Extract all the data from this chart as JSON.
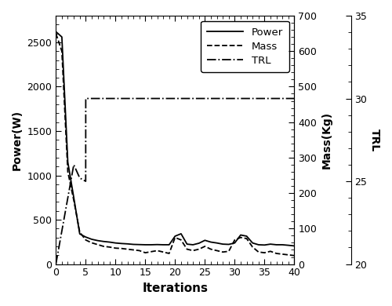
{
  "xlabel": "Iterations",
  "ylabel_left": "Power(W)",
  "ylabel_middle": "Mass(Kg)",
  "ylabel_right": "TRL",
  "xlim": [
    0,
    40
  ],
  "ylim_left": [
    0,
    2800
  ],
  "ylim_middle": [
    0,
    700
  ],
  "ylim_right": [
    20,
    35
  ],
  "xticks": [
    0,
    5,
    10,
    15,
    20,
    25,
    30,
    35,
    40
  ],
  "yticks_left": [
    0,
    500,
    1000,
    1500,
    2000,
    2500
  ],
  "yticks_middle": [
    0,
    100,
    200,
    300,
    400,
    500,
    600,
    700
  ],
  "yticks_right": [
    20,
    25,
    30,
    35
  ],
  "power_x": [
    0,
    1,
    2,
    3,
    4,
    5,
    6,
    7,
    8,
    9,
    10,
    11,
    12,
    13,
    14,
    15,
    16,
    17,
    18,
    19,
    20,
    21,
    22,
    23,
    24,
    25,
    26,
    27,
    28,
    29,
    30,
    31,
    32,
    33,
    34,
    35,
    36,
    37,
    38,
    39,
    40
  ],
  "power_y": [
    2620,
    2560,
    1150,
    750,
    340,
    305,
    280,
    265,
    255,
    248,
    238,
    232,
    228,
    222,
    220,
    218,
    218,
    220,
    218,
    218,
    315,
    342,
    225,
    218,
    235,
    268,
    248,
    238,
    225,
    222,
    238,
    328,
    315,
    238,
    218,
    215,
    225,
    218,
    218,
    212,
    205
  ],
  "mass_x": [
    0,
    1,
    2,
    3,
    4,
    5,
    6,
    7,
    8,
    9,
    10,
    11,
    12,
    13,
    14,
    15,
    16,
    17,
    18,
    19,
    20,
    21,
    22,
    23,
    24,
    25,
    26,
    27,
    28,
    29,
    30,
    31,
    32,
    33,
    34,
    35,
    36,
    37,
    38,
    39,
    40
  ],
  "mass_y": [
    650,
    600,
    260,
    180,
    90,
    68,
    60,
    55,
    50,
    48,
    45,
    44,
    42,
    40,
    38,
    32,
    35,
    38,
    34,
    30,
    75,
    68,
    42,
    38,
    42,
    50,
    42,
    38,
    34,
    36,
    68,
    75,
    72,
    48,
    34,
    32,
    36,
    30,
    28,
    26,
    24
  ],
  "trl_x": [
    0,
    1,
    2,
    3,
    4,
    5,
    5.01,
    6,
    7,
    8,
    9,
    10,
    11,
    12,
    13,
    14,
    15,
    16,
    17,
    18,
    19,
    20,
    21,
    22,
    23,
    24,
    25,
    26,
    27,
    28,
    29,
    30,
    31,
    32,
    33,
    34,
    35,
    36,
    37,
    38,
    39,
    40
  ],
  "trl_y": [
    20,
    22,
    24,
    26,
    25.2,
    25.0,
    30,
    30,
    30,
    30,
    30,
    30,
    30,
    30,
    30,
    30,
    30,
    30,
    30,
    30,
    30,
    30,
    30,
    30,
    30,
    30,
    30,
    30,
    30,
    30,
    30,
    30,
    30,
    30,
    30,
    30,
    30,
    30,
    30,
    30,
    30,
    30
  ],
  "bg_color": "#ffffff",
  "line_color": "#000000",
  "legend_labels": [
    "Power",
    "Mass",
    "TRL"
  ]
}
